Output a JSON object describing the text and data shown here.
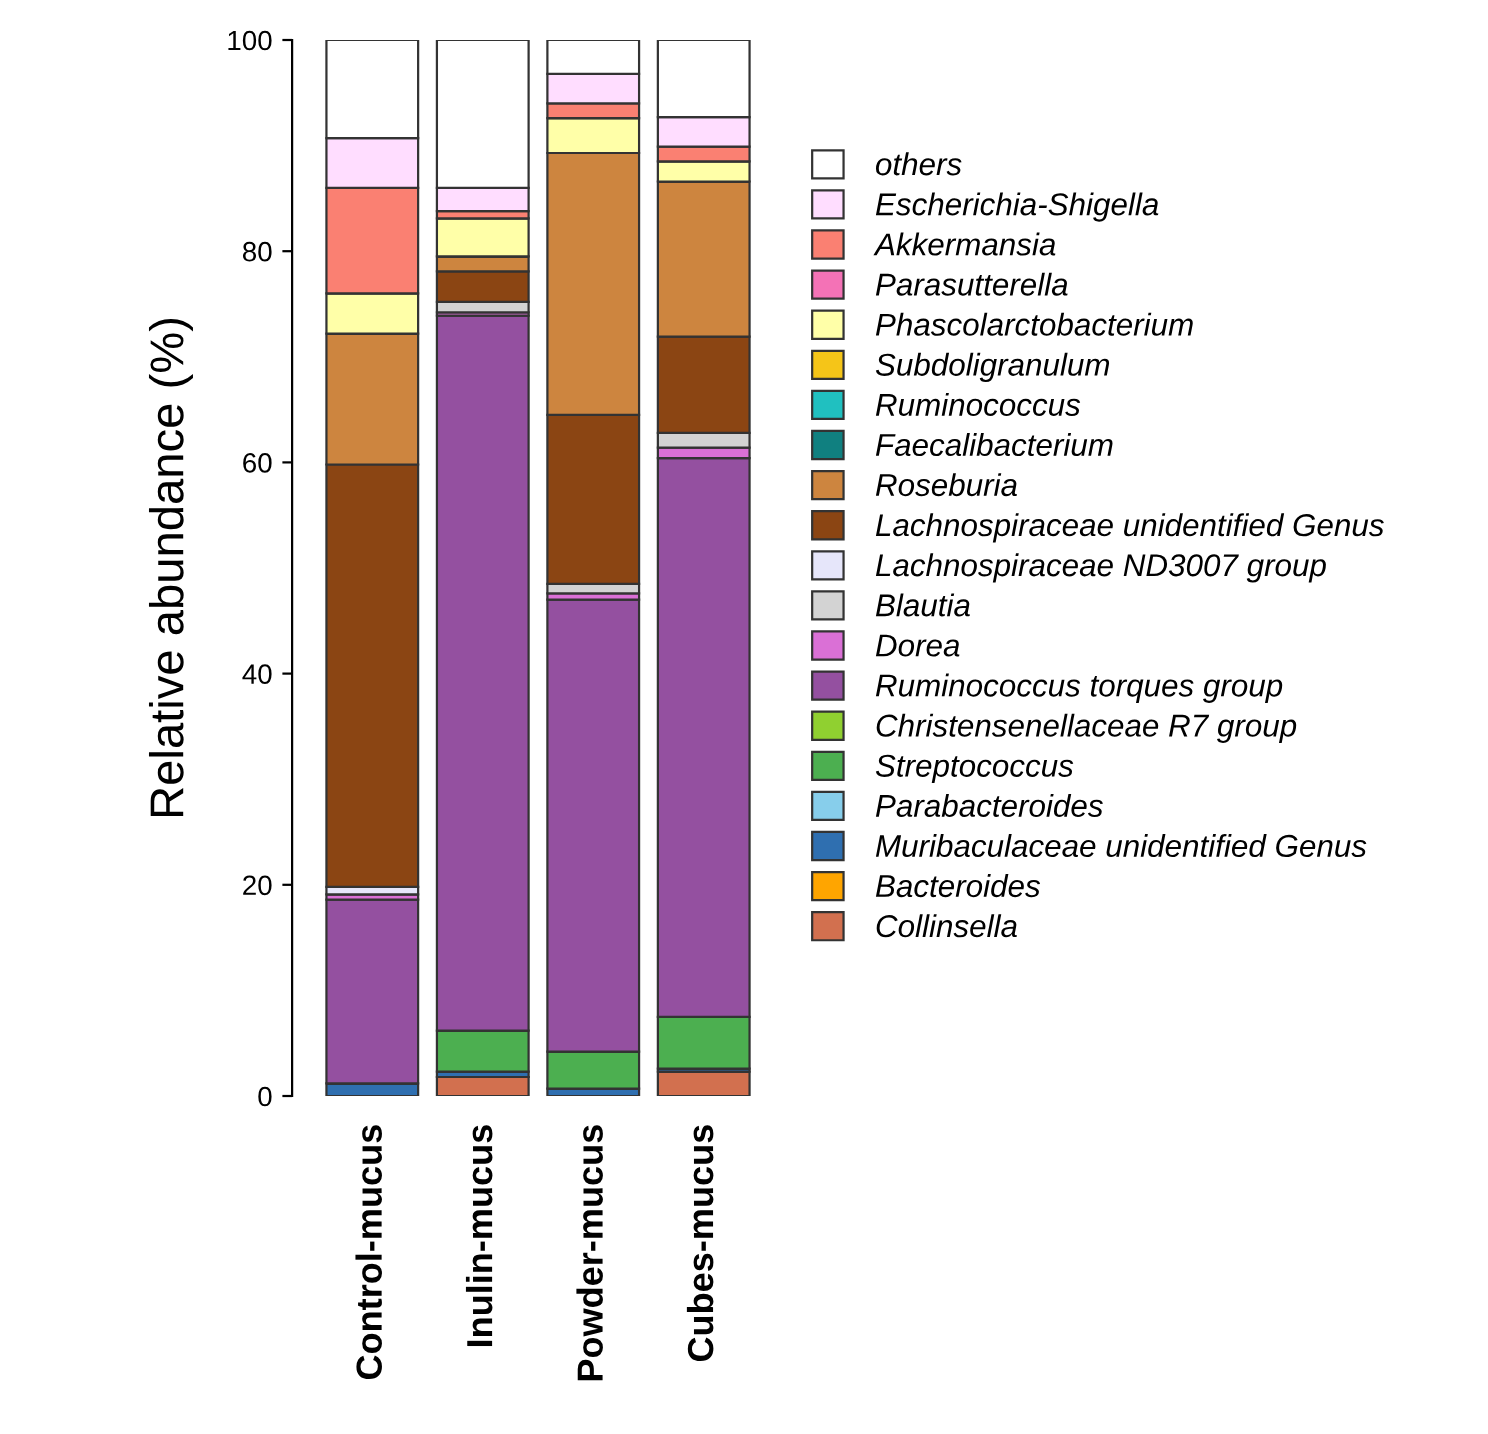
{
  "chart_data": {
    "type": "bar",
    "stacked": true,
    "ylabel": "Relative abundance (%)",
    "categories": [
      "Control-mucus",
      "Inulin-mucus",
      "Powder-mucus",
      "Cubes-mucus"
    ],
    "ylim": [
      0,
      100
    ],
    "yticks": [
      0,
      20,
      40,
      60,
      80,
      100
    ],
    "grid": false,
    "legend": "right",
    "series": [
      {
        "name": "Collinsella",
        "color": "#d2704f",
        "values": [
          0,
          1.8,
          0,
          2.3
        ]
      },
      {
        "name": "Bacteroides",
        "color": "#ffa500",
        "values": [
          0,
          0,
          0,
          0
        ]
      },
      {
        "name": "Muribaculaceae unidentified Genus",
        "color": "#2f6fb0",
        "values": [
          1.2,
          0.5,
          0.7,
          0.3
        ]
      },
      {
        "name": "Parabacteroides",
        "color": "#87ceeb",
        "values": [
          0,
          0,
          0,
          0
        ]
      },
      {
        "name": "Streptococcus",
        "color": "#4caf50",
        "values": [
          0,
          3.9,
          3.5,
          4.9
        ]
      },
      {
        "name": "Christensenellaceae R7 group",
        "color": "#90d030",
        "values": [
          0,
          0,
          0,
          0
        ]
      },
      {
        "name": "Ruminococcus torques group",
        "color": "#9450a0",
        "values": [
          17.4,
          67.7,
          42.8,
          52.9
        ]
      },
      {
        "name": "Dorea",
        "color": "#da70d6",
        "values": [
          0.5,
          0.3,
          0.6,
          1.0
        ]
      },
      {
        "name": "Blautia",
        "color": "#d3d3d3",
        "values": [
          0,
          1.0,
          0.9,
          1.4
        ]
      },
      {
        "name": "Lachnospiraceae ND3007 group",
        "color": "#e6e6fa",
        "values": [
          0.7,
          0,
          0,
          0
        ]
      },
      {
        "name": "Lachnospiraceae unidentified Genus",
        "color": "#8b4513",
        "values": [
          40.0,
          2.9,
          16.0,
          9.1
        ]
      },
      {
        "name": "Roseburia",
        "color": "#cd853f",
        "values": [
          12.4,
          1.4,
          24.8,
          14.7
        ]
      },
      {
        "name": "Faecalibacterium",
        "color": "#108080",
        "values": [
          0,
          0,
          0,
          0
        ]
      },
      {
        "name": "Ruminococcus",
        "color": "#20c0c0",
        "values": [
          0,
          0,
          0,
          0
        ]
      },
      {
        "name": "Subdoligranulum",
        "color": "#f5c518",
        "values": [
          0,
          0,
          0,
          0
        ]
      },
      {
        "name": "Phascolarctobacterium",
        "color": "#ffffa8",
        "values": [
          3.8,
          3.6,
          3.3,
          1.9
        ]
      },
      {
        "name": "Parasutterella",
        "color": "#f472b6",
        "values": [
          0,
          0,
          0,
          0
        ]
      },
      {
        "name": "Akkermansia",
        "color": "#fa8072",
        "values": [
          10.0,
          0.7,
          1.4,
          1.4
        ]
      },
      {
        "name": "Escherichia-Shigella",
        "color": "#ffddff",
        "values": [
          4.7,
          2.2,
          2.8,
          2.8
        ]
      },
      {
        "name": "others",
        "color": "#ffffff",
        "values": [
          9.3,
          14.0,
          3.2,
          7.3
        ]
      }
    ]
  }
}
